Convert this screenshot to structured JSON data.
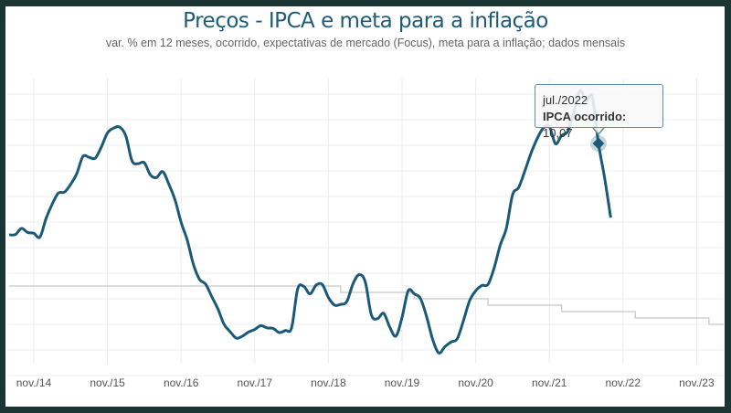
{
  "chart_data": {
    "type": "line",
    "title": "Preços - IPCA e meta para a inflação",
    "subtitle": "var. % em 12 meses, ocorrido, expectativas de mercado (Focus), meta para a inflação; dados mensais",
    "x_tick_labels": [
      "nov./14",
      "nov./15",
      "nov./16",
      "nov./17",
      "nov./18",
      "nov./19",
      "nov./20",
      "nov./21",
      "nov./22",
      "nov./23"
    ],
    "grid": true,
    "ylim": [
      0.5,
      12.5
    ],
    "colors": {
      "ipca": "#1a5a78",
      "meta": "#d0d0d0",
      "title": "#1d5b78"
    },
    "series": [
      {
        "key": "ipca",
        "start": "2014-07",
        "values": [
          6.5,
          6.51,
          6.75,
          6.59,
          6.56,
          6.41,
          7.14,
          7.7,
          8.13,
          8.17,
          8.47,
          8.89,
          9.56,
          9.53,
          9.49,
          9.93,
          10.48,
          10.67,
          10.71,
          10.36,
          9.39,
          9.28,
          9.32,
          8.84,
          8.74,
          8.97,
          8.48,
          7.87,
          6.99,
          6.29,
          5.35,
          4.76,
          4.57,
          4.08,
          3.6,
          3.0,
          2.71,
          2.46,
          2.54,
          2.7,
          2.8,
          2.95,
          2.86,
          2.84,
          2.68,
          2.76,
          2.86,
          4.39,
          4.48,
          4.19,
          4.53,
          4.56,
          4.05,
          3.75,
          3.78,
          3.89,
          4.58,
          4.94,
          4.66,
          3.37,
          3.22,
          3.43,
          2.89,
          2.54,
          3.27,
          4.31,
          4.19,
          4.01,
          3.3,
          2.4,
          1.88,
          2.13,
          2.31,
          2.44,
          3.14,
          3.92,
          4.31,
          4.52,
          4.56,
          5.2,
          6.1,
          6.76,
          8.06,
          8.35,
          8.99,
          9.68,
          10.25,
          10.67,
          10.74,
          10.06,
          10.38,
          10.54,
          11.3,
          12.13,
          11.73,
          11.89,
          10.07,
          8.73,
          7.17
        ]
      },
      {
        "key": "meta",
        "steps": [
          {
            "from": "2014-07",
            "value": 4.5
          },
          {
            "from": "2019-01",
            "value": 4.25
          },
          {
            "from": "2020-01",
            "value": 4.0
          },
          {
            "from": "2021-01",
            "value": 3.75
          },
          {
            "from": "2022-01",
            "value": 3.5
          },
          {
            "from": "2023-01",
            "value": 3.25
          },
          {
            "from": "2024-01",
            "value": 3.0
          }
        ]
      }
    ],
    "tooltip": {
      "date": "jul./2022",
      "label": "IPCA ocorrido:",
      "value": "10,07",
      "highlight_value": 10.07,
      "highlight_date": "2022-07"
    }
  }
}
